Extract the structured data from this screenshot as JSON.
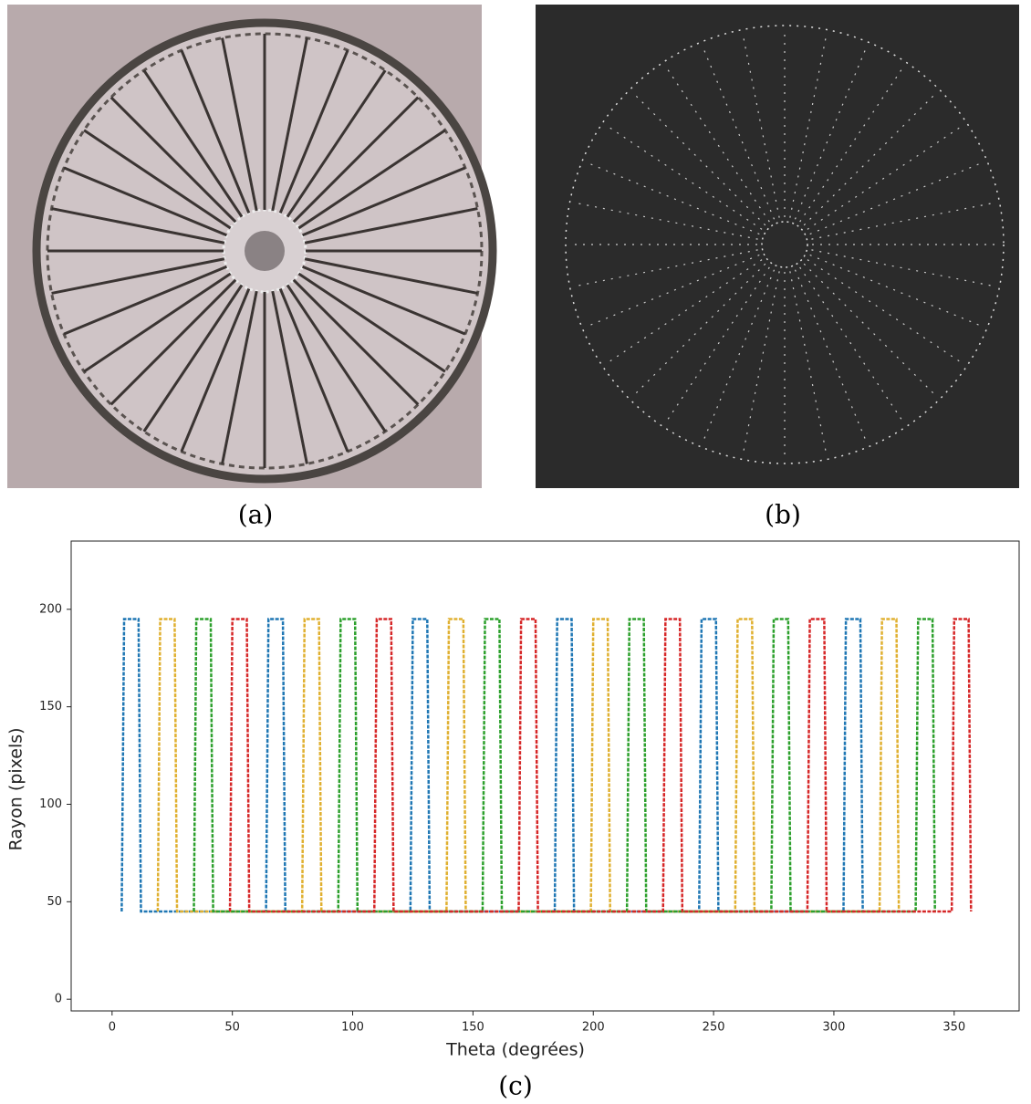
{
  "figure": {
    "captions": {
      "a": "(a)",
      "b": "(b)",
      "c": "(c)"
    }
  },
  "chart_data": {
    "type": "line",
    "xlabel": "Theta (degrées)",
    "ylabel": "Rayon (pixels)",
    "xlim": [
      -17,
      377
    ],
    "ylim": [
      -6,
      235
    ],
    "xticks": [
      0,
      50,
      100,
      150,
      200,
      250,
      300,
      350
    ],
    "yticks": [
      0,
      50,
      100,
      150,
      200
    ],
    "series": [
      {
        "color": "#1f77b4",
        "x": [
          4,
          5,
          11,
          12,
          64,
          65,
          71,
          72,
          124,
          125,
          131,
          132,
          184,
          185,
          191,
          192,
          244,
          245,
          251,
          252,
          304,
          305,
          311,
          312
        ],
        "values": [
          45,
          195,
          195,
          45,
          45,
          195,
          195,
          45,
          45,
          195,
          195,
          45,
          45,
          195,
          195,
          45,
          45,
          195,
          195,
          45,
          45,
          195,
          195,
          45
        ]
      },
      {
        "color": "#e0b030",
        "x": [
          19,
          20,
          26,
          27,
          79,
          80,
          86,
          87,
          139,
          140,
          146,
          147,
          199,
          200,
          206,
          207,
          259,
          260,
          266,
          267,
          319,
          320,
          326,
          327
        ],
        "values": [
          45,
          195,
          195,
          45,
          45,
          195,
          195,
          45,
          45,
          195,
          195,
          45,
          45,
          195,
          195,
          45,
          45,
          195,
          195,
          45,
          45,
          195,
          195,
          45
        ]
      },
      {
        "color": "#2ca02c",
        "x": [
          34,
          35,
          41,
          42,
          94,
          95,
          101,
          102,
          154,
          155,
          161,
          162,
          214,
          215,
          221,
          222,
          274,
          275,
          281,
          282,
          334,
          335,
          341,
          342
        ],
        "values": [
          45,
          195,
          195,
          45,
          45,
          195,
          195,
          45,
          45,
          195,
          195,
          45,
          45,
          195,
          195,
          45,
          45,
          195,
          195,
          45,
          45,
          195,
          195,
          45
        ]
      },
      {
        "color": "#d62728",
        "x": [
          49,
          50,
          56,
          57,
          109,
          110,
          116,
          117,
          169,
          170,
          176,
          177,
          229,
          230,
          236,
          237,
          289,
          290,
          296,
          297,
          349,
          350,
          356,
          357
        ],
        "values": [
          45,
          195,
          195,
          45,
          45,
          195,
          195,
          45,
          45,
          195,
          195,
          45,
          45,
          195,
          195,
          45,
          45,
          195,
          195,
          45,
          45,
          195,
          195,
          45
        ]
      }
    ]
  }
}
